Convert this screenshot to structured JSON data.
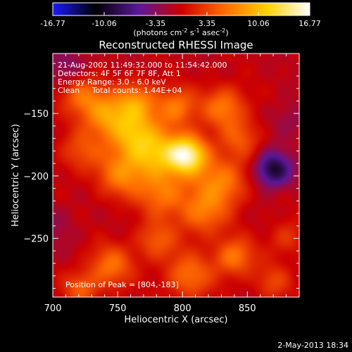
{
  "chart_data": {
    "type": "heatmap",
    "title": "Reconstructed RHESSI Image",
    "xlabel": "Heliocentric X (arcsec)",
    "ylabel": "Heliocentric Y (arcsec)",
    "xlim": [
      700,
      890
    ],
    "ylim": [
      -297,
      -102
    ],
    "xticks": [
      700,
      750,
      800,
      850
    ],
    "yticks": [
      -250,
      -200,
      -150
    ],
    "colorbar": {
      "range": [
        -16.77,
        16.77
      ],
      "ticks": [
        "-16.77",
        "-10.06",
        "-3.35",
        "3.35",
        "10.06",
        "16.77"
      ],
      "tick_values": [
        -16.77,
        -10.06,
        -3.35,
        3.35,
        10.06,
        16.77
      ],
      "units_label": "(photons cm",
      "units_sup1": "-2",
      "units_mid": " s",
      "units_sup2": "-1",
      "units_end": " asec",
      "units_sup3": "-2",
      "units_close": ")",
      "colormap": [
        "#1a1aff",
        "#000000",
        "#5a189a",
        "#cc0000",
        "#ff6a00",
        "#ffd000",
        "#ffffff"
      ]
    },
    "annotations": [
      "21-Aug-2002 11:49:32.000 to 11:54:42.000",
      "Detectors: 4F 5F 6F 7F 8F, Att 1",
      "Energy Range: 3.0 - 6.0 keV",
      "Clean     Total counts: 1.44E+04"
    ],
    "peak_label": "Position of Peak = [804,-183]",
    "peak": {
      "x": 804,
      "y": -183,
      "value": 16.77
    },
    "sources": [
      {
        "x": 804,
        "y": -183,
        "amp": 26,
        "s": 11
      },
      {
        "x": 778,
        "y": -183,
        "amp": 16,
        "s": 15
      },
      {
        "x": 760,
        "y": -165,
        "amp": 15,
        "s": 14
      },
      {
        "x": 740,
        "y": -150,
        "amp": 13,
        "s": 12
      },
      {
        "x": 722,
        "y": -135,
        "amp": 11,
        "s": 11
      },
      {
        "x": 765,
        "y": -140,
        "amp": 12,
        "s": 11
      },
      {
        "x": 795,
        "y": -145,
        "amp": 12,
        "s": 11
      },
      {
        "x": 832,
        "y": -145,
        "amp": 12,
        "s": 12
      },
      {
        "x": 845,
        "y": -170,
        "amp": 8,
        "s": 11
      },
      {
        "x": 830,
        "y": -205,
        "amp": 13,
        "s": 14
      },
      {
        "x": 815,
        "y": -230,
        "amp": 11,
        "s": 13
      },
      {
        "x": 785,
        "y": -215,
        "amp": 11,
        "s": 13
      },
      {
        "x": 752,
        "y": -200,
        "amp": 11,
        "s": 13
      },
      {
        "x": 722,
        "y": -180,
        "amp": 8,
        "s": 12
      },
      {
        "x": 780,
        "y": -252,
        "amp": 9,
        "s": 11
      },
      {
        "x": 745,
        "y": -272,
        "amp": 11,
        "s": 12
      },
      {
        "x": 722,
        "y": -290,
        "amp": 9,
        "s": 10
      },
      {
        "x": 805,
        "y": -280,
        "amp": 11,
        "s": 13
      },
      {
        "x": 840,
        "y": -265,
        "amp": 12,
        "s": 11
      },
      {
        "x": 880,
        "y": -250,
        "amp": 6,
        "s": 10
      },
      {
        "x": 870,
        "y": -285,
        "amp": 7,
        "s": 10
      },
      {
        "x": 883,
        "y": -155,
        "amp": -4,
        "s": 10
      },
      {
        "x": 870,
        "y": -195,
        "amp": -16,
        "s": 10
      },
      {
        "x": 712,
        "y": -113,
        "amp": -5,
        "s": 12
      },
      {
        "x": 700,
        "y": -240,
        "amp": -3,
        "s": 12
      }
    ]
  },
  "footer": {
    "date": "2-May-2013 18:34"
  }
}
